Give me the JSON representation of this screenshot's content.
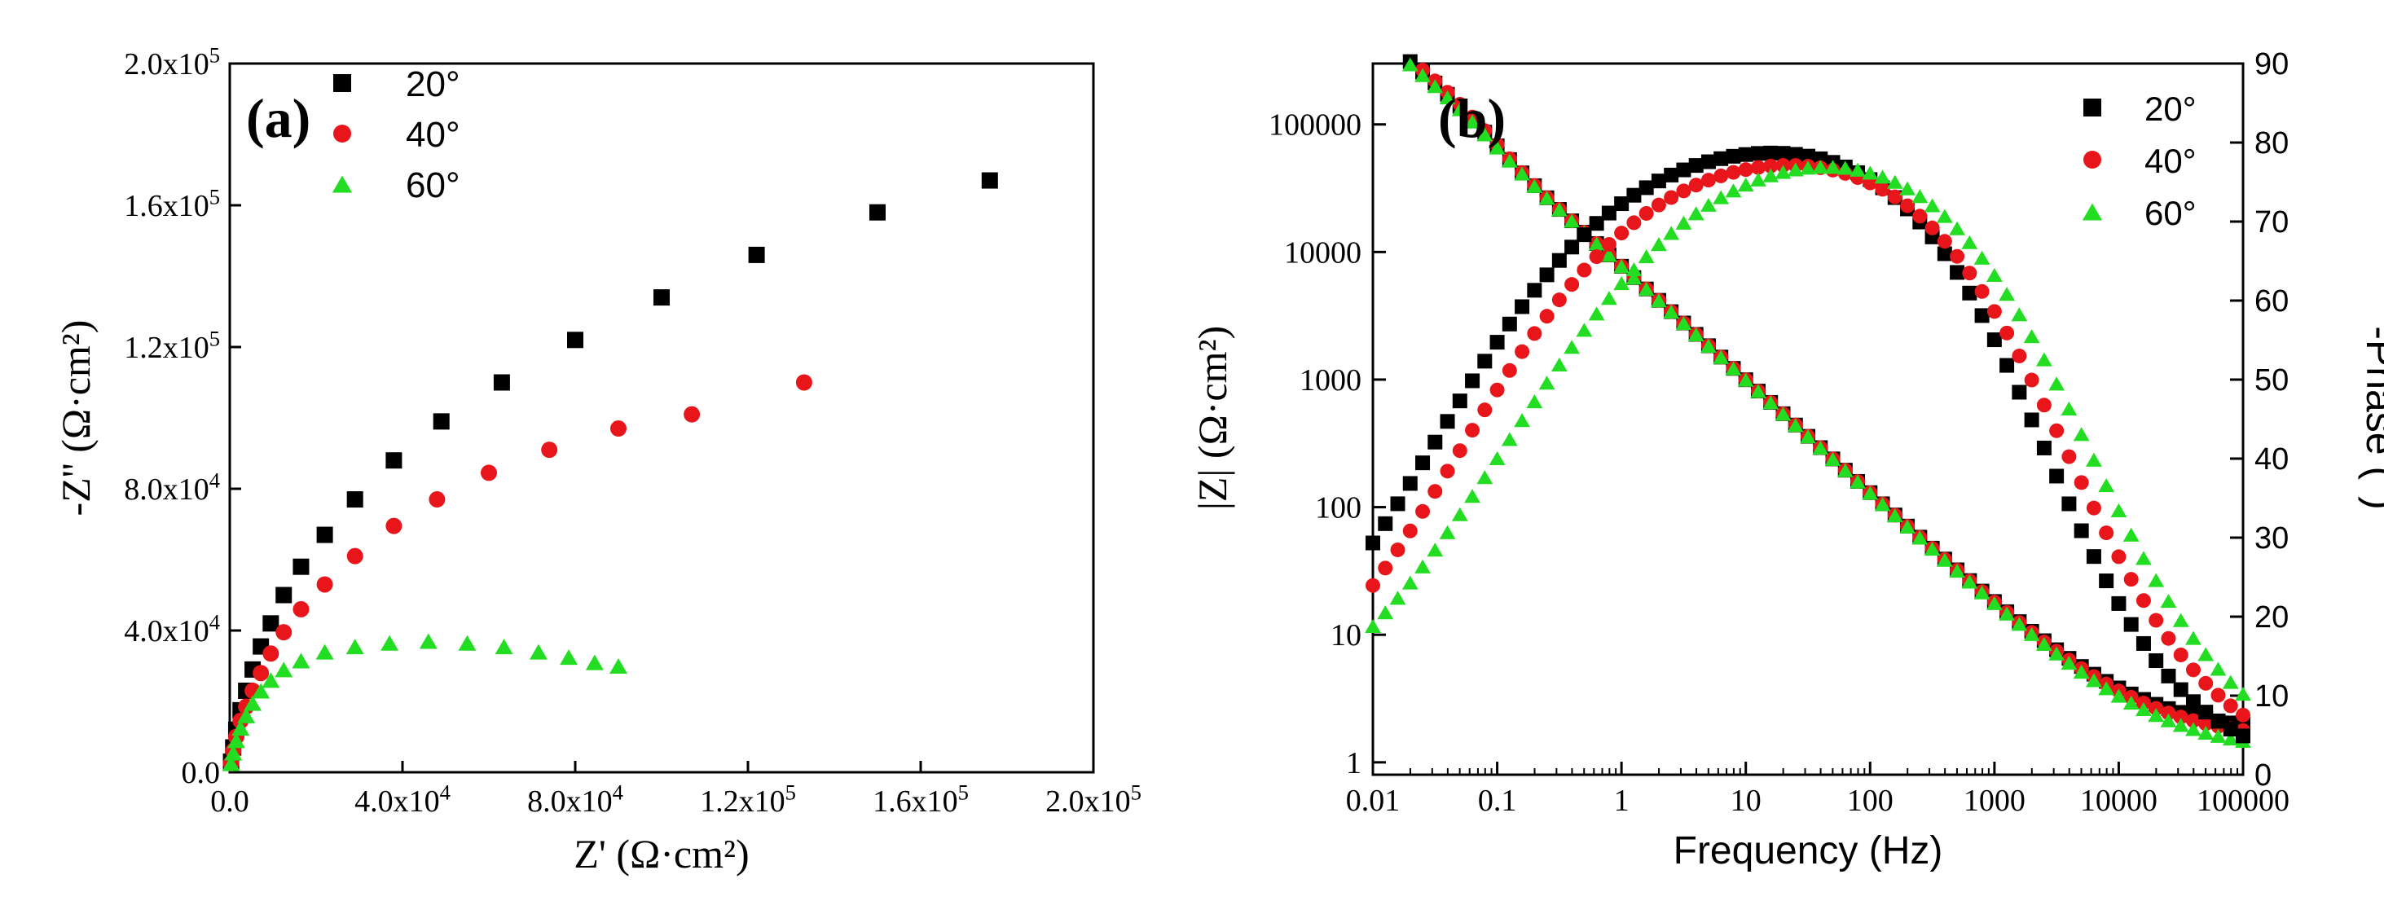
{
  "chart_data": [
    {
      "panel_label": "(a)",
      "type": "scatter",
      "title": "",
      "xlabel": "Z' (Ω·cm²)",
      "ylabel": "-Z'' (Ω·cm²)",
      "xlim": [
        0,
        200000
      ],
      "ylim": [
        0,
        200000
      ],
      "xtick_labels": [
        "0.0",
        "4.0x10⁴",
        "8.0x10⁴",
        "1.2x10⁵",
        "1.6x10⁵",
        "2.0x10⁵"
      ],
      "ytick_labels": [
        "0.0",
        "4.0x10⁴",
        "8.0x10⁴",
        "1.2x10⁵",
        "1.6x10⁵",
        "2.0x10⁵"
      ],
      "legend_position": "top-left",
      "series": [
        {
          "name": "20°",
          "marker": "square",
          "color": "#000000",
          "x": [
            300,
            800,
            1500,
            2500,
            3800,
            5300,
            7200,
            9500,
            12500,
            16500,
            22000,
            29000,
            38000,
            49000,
            63000,
            80000,
            100000,
            122000,
            150000,
            176000
          ],
          "y": [
            3000,
            7000,
            12000,
            17500,
            23000,
            29000,
            35500,
            42000,
            50000,
            58000,
            67000,
            77000,
            88000,
            99000,
            110000,
            122000,
            134000,
            146000,
            158000,
            167000
          ]
        },
        {
          "name": "40°",
          "marker": "circle",
          "color": "#e8161a",
          "x": [
            300,
            800,
            1500,
            2500,
            3800,
            5300,
            7200,
            9500,
            12500,
            16500,
            22000,
            29000,
            38000,
            48000,
            60000,
            74000,
            90000,
            107000,
            133000
          ],
          "y": [
            2500,
            6000,
            10000,
            14500,
            18500,
            23000,
            28000,
            33500,
            39500,
            46000,
            53000,
            61000,
            69500,
            77000,
            84500,
            91000,
            97000,
            101000,
            110000
          ]
        },
        {
          "name": "60°",
          "marker": "triangle",
          "color": "#22dd22",
          "x": [
            300,
            800,
            1500,
            2500,
            3800,
            5300,
            7200,
            9500,
            12500,
            16500,
            22000,
            29000,
            37000,
            46000,
            55000,
            63500,
            71500,
            78500,
            84500,
            90000
          ],
          "y": [
            2500,
            5500,
            9000,
            12500,
            16000,
            19500,
            23000,
            26000,
            29000,
            31500,
            34000,
            35500,
            36500,
            37000,
            36500,
            35500,
            34000,
            32500,
            31000,
            30000
          ]
        }
      ]
    },
    {
      "panel_label": "(b)",
      "type": "scatter",
      "title": "",
      "xlabel": "Frequency (Hz)",
      "ylabel": "|Z| (Ω·cm²)",
      "ylabel_right": "-Phase (°)",
      "xscale": "log",
      "yscale": "log",
      "xlim": [
        0.01,
        100000
      ],
      "ylim": [
        0.8,
        300000
      ],
      "ylim_right": [
        0,
        90
      ],
      "xtick_labels": [
        "0.01",
        "0.1",
        "1",
        "10",
        "100",
        "1000",
        "10000",
        "100000"
      ],
      "ytick_labels": [
        "1",
        "10",
        "100",
        "1000",
        "10000",
        "100000"
      ],
      "ytick_labels_right": [
        "0",
        "10",
        "20",
        "30",
        "40",
        "50",
        "60",
        "70",
        "80",
        "90"
      ],
      "legend_position": "top-right",
      "legend": [
        {
          "name": "20°",
          "marker": "square",
          "color": "#000000"
        },
        {
          "name": "40°",
          "marker": "circle",
          "color": "#e8161a"
        },
        {
          "name": "60°",
          "marker": "triangle",
          "color": "#22dd22"
        }
      ],
      "freq_range": [
        0.01,
        100000
      ],
      "points_per_decade": 10,
      "series": [
        {
          "name": "20° |Z|",
          "axis": "left",
          "marker": "square",
          "color": "#000000",
          "model": "impedance",
          "params": {
            "R0": 60000,
            "D": 1.7,
            "n": 0.89,
            "C": 0.54
          }
        },
        {
          "name": "40° |Z|",
          "axis": "left",
          "marker": "circle",
          "color": "#e8161a",
          "model": "impedance",
          "params": {
            "R0": 60000,
            "D": 1.5,
            "n": 0.89,
            "C": 0.64
          }
        },
        {
          "name": "60° |Z|",
          "axis": "left",
          "marker": "triangle",
          "color": "#22dd22",
          "model": "impedance",
          "params": {
            "R0": 60000,
            "D": 1.2,
            "n": 0.89,
            "C": 0.4
          }
        },
        {
          "name": "20° phase",
          "axis": "right",
          "marker": "square",
          "color": "#000000",
          "model": "phase",
          "params": {
            "P": 83,
            "f1": 0.03,
            "f2": 2500,
            "s1": 0.55,
            "s2": 0.75
          }
        },
        {
          "name": "40° phase",
          "axis": "right",
          "marker": "circle",
          "color": "#e8161a",
          "model": "phase",
          "params": {
            "P": 82,
            "f1": 0.05,
            "f2": 3800,
            "s1": 0.55,
            "s2": 0.7
          }
        },
        {
          "name": "60° phase",
          "axis": "right",
          "marker": "triangle",
          "color": "#22dd22",
          "model": "phase",
          "params": {
            "P": 84,
            "f1": 0.12,
            "f2": 5500,
            "s1": 0.5,
            "s2": 0.68
          }
        }
      ]
    }
  ]
}
